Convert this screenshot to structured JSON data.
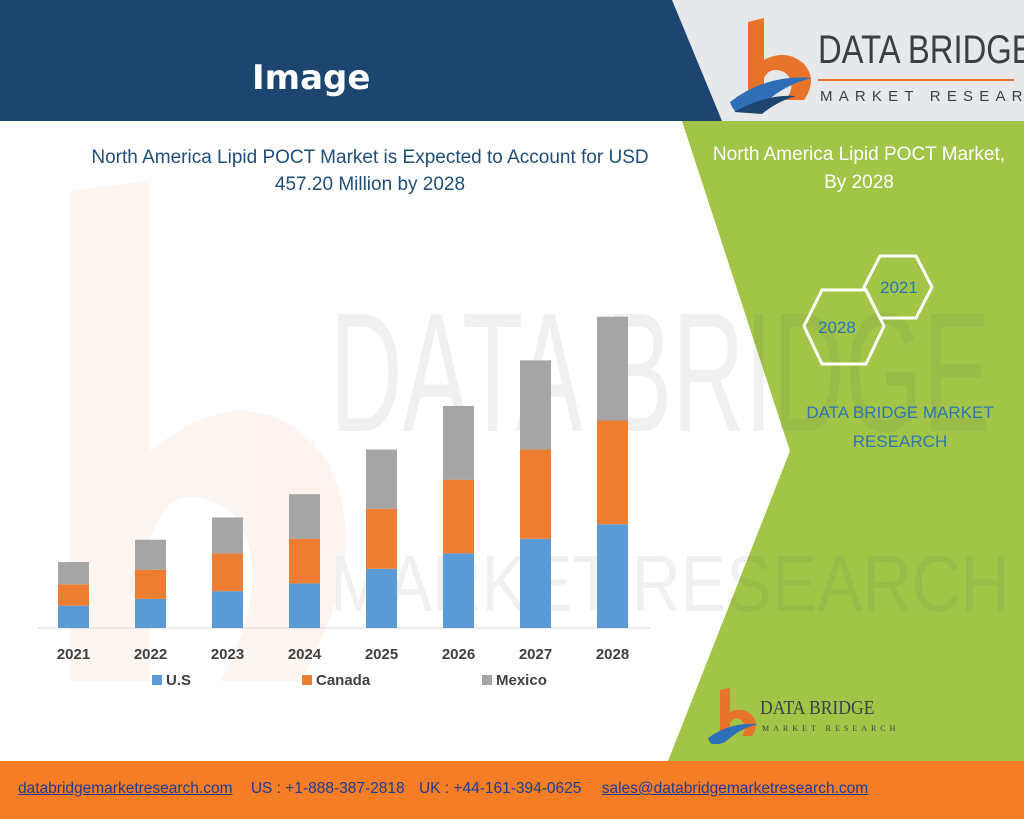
{
  "header": {
    "title": "Image",
    "logo_name": "DATA BRIDGE",
    "logo_tagline": "MARKET RESEARCH"
  },
  "colors": {
    "header_blue": "#1c4570",
    "panel_green": "#a2c548",
    "us": "#5b9bd5",
    "canada": "#ed7d31",
    "mexico": "#a5a5a5",
    "footer_orange": "#f47d26"
  },
  "chart_data": {
    "type": "bar",
    "stacked": true,
    "title": "North America Lipid POCT Market is Expected to Account for USD 457.20 Million by 2028",
    "categories": [
      "2021",
      "2022",
      "2023",
      "2024",
      "2025",
      "2026",
      "2027",
      "2028"
    ],
    "series": [
      {
        "name": "U.S",
        "values": [
          23,
          30,
          38,
          46,
          61,
          77,
          92,
          107
        ]
      },
      {
        "name": "Canada",
        "values": [
          22,
          30,
          39,
          46,
          62,
          76,
          92,
          107
        ]
      },
      {
        "name": "Mexico",
        "values": [
          23,
          31,
          37,
          46,
          61,
          76,
          92,
          107
        ]
      }
    ],
    "ylim": [
      0,
      330
    ],
    "grid": false,
    "legend": "bottom"
  },
  "side_panel": {
    "title": "North America Lipid POCT Market, By 2028",
    "hex_left": "2028",
    "hex_right": "2021",
    "brand": "DATA BRIDGE MARKET RESEARCH"
  },
  "footer_logo": {
    "name": "DATA BRIDGE",
    "tagline": "MARKET RESEARCH"
  },
  "footer": {
    "website": "databridgemarketresearch.com",
    "us_phone": "US : +1-888-387-2818",
    "uk_phone": "UK : +44-161-394-0625",
    "email": "sales@databridgemarketresearch.com"
  }
}
